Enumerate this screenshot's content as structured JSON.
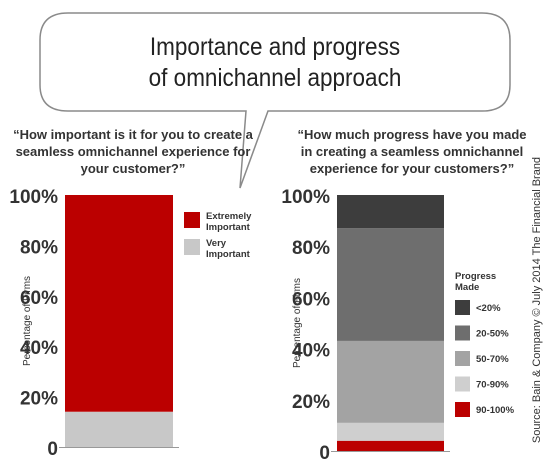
{
  "title_lines": [
    "Importance and progress",
    "of omnichannel approach"
  ],
  "left_question": "“How important is it for you to create a seamless omnichannel experience for your customer?”",
  "right_question": "“How much progress have you made in creating a seamless omnichannel experience for your customers?”",
  "source": "Source: Bain & Company © July 2014 The Financial Brand",
  "chart_data": [
    {
      "type": "bar",
      "stacked": true,
      "ylabel": "Percentage  of Firms",
      "ylim": [
        0,
        100
      ],
      "yticks": [
        "0",
        "20%",
        "40%",
        "60%",
        "80%",
        "100%"
      ],
      "legend_title": "",
      "legend_position": "right",
      "series": [
        {
          "name": "Extremely Important",
          "label_lines": [
            "Extremely",
            "Important"
          ],
          "value": 86,
          "color": "#bb0000"
        },
        {
          "name": "Very Important",
          "label_lines": [
            "Very",
            "Important"
          ],
          "value": 14,
          "color": "#c8c8c8"
        }
      ]
    },
    {
      "type": "bar",
      "stacked": true,
      "ylabel": "Percentage  of Firms",
      "ylim": [
        0,
        100
      ],
      "yticks": [
        "0",
        "20%",
        "40%",
        "60%",
        "80%",
        "100%"
      ],
      "legend_title_lines": [
        "Progress",
        "Made"
      ],
      "legend_position": "right",
      "series": [
        {
          "name": "<20%",
          "value": 13,
          "color": "#3d3d3d"
        },
        {
          "name": "20-50%",
          "value": 44,
          "color": "#6e6e6e"
        },
        {
          "name": "50-70%",
          "value": 32,
          "color": "#a3a3a3"
        },
        {
          "name": "70-90%",
          "value": 7,
          "color": "#cfcfcf"
        },
        {
          "name": "90-100%",
          "value": 4,
          "color": "#bb0000"
        }
      ]
    }
  ]
}
